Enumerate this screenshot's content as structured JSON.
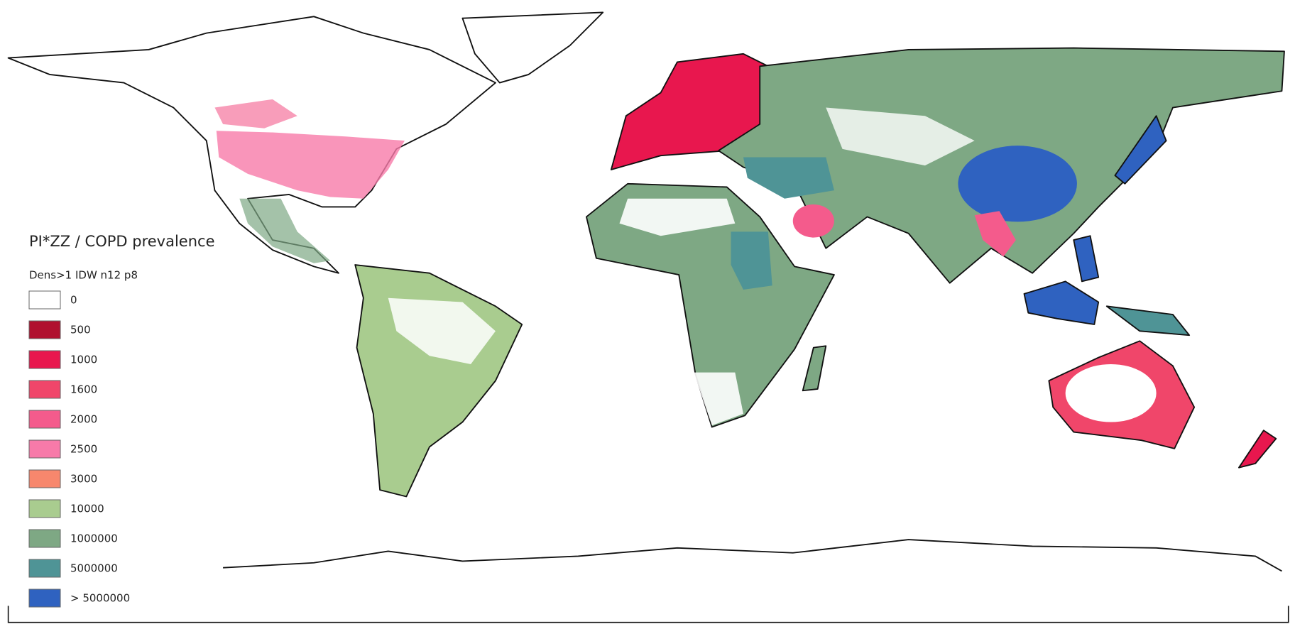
{
  "legend": {
    "title": "PI*ZZ / COPD prevalence",
    "subtitle": "Dens>1 IDW n12 p8",
    "items": [
      {
        "label": "0",
        "color": "#ffffff"
      },
      {
        "label": "500",
        "color": "#b0102f"
      },
      {
        "label": "1000",
        "color": "#e8174e"
      },
      {
        "label": "1600",
        "color": "#f0466a"
      },
      {
        "label": "2000",
        "color": "#f45b8c"
      },
      {
        "label": "2500",
        "color": "#f77aa9"
      },
      {
        "label": "3000",
        "color": "#f7876d"
      },
      {
        "label": "10000",
        "color": "#a9cc8f"
      },
      {
        "label": "1000000",
        "color": "#7ea884"
      },
      {
        "label": "5000000",
        "color": "#4f9496"
      },
      {
        "label": "> 5000000",
        "color": "#2f62c0"
      }
    ]
  }
}
